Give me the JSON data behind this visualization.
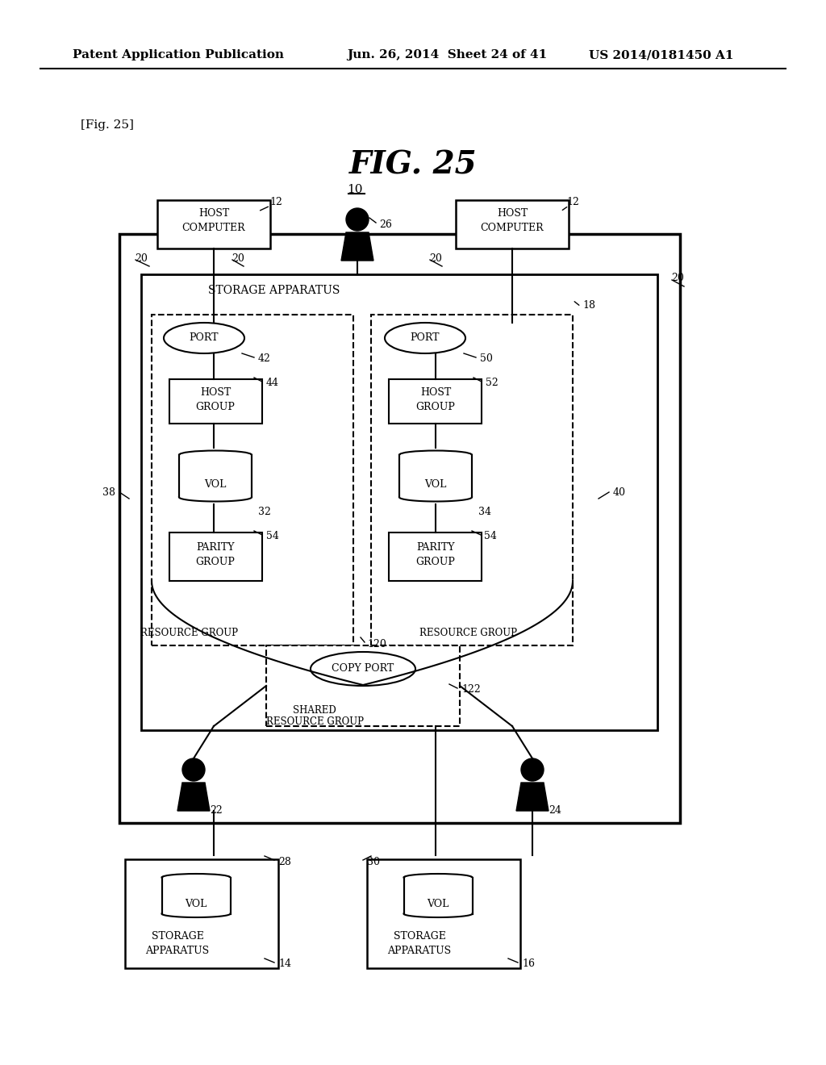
{
  "bg_color": "#ffffff",
  "title": "FIG. 25",
  "header_left": "Patent Application Publication",
  "header_mid": "Jun. 26, 2014  Sheet 24 of 41",
  "header_right": "US 2014/0181450 A1",
  "fig_label": "[Fig. 25]"
}
